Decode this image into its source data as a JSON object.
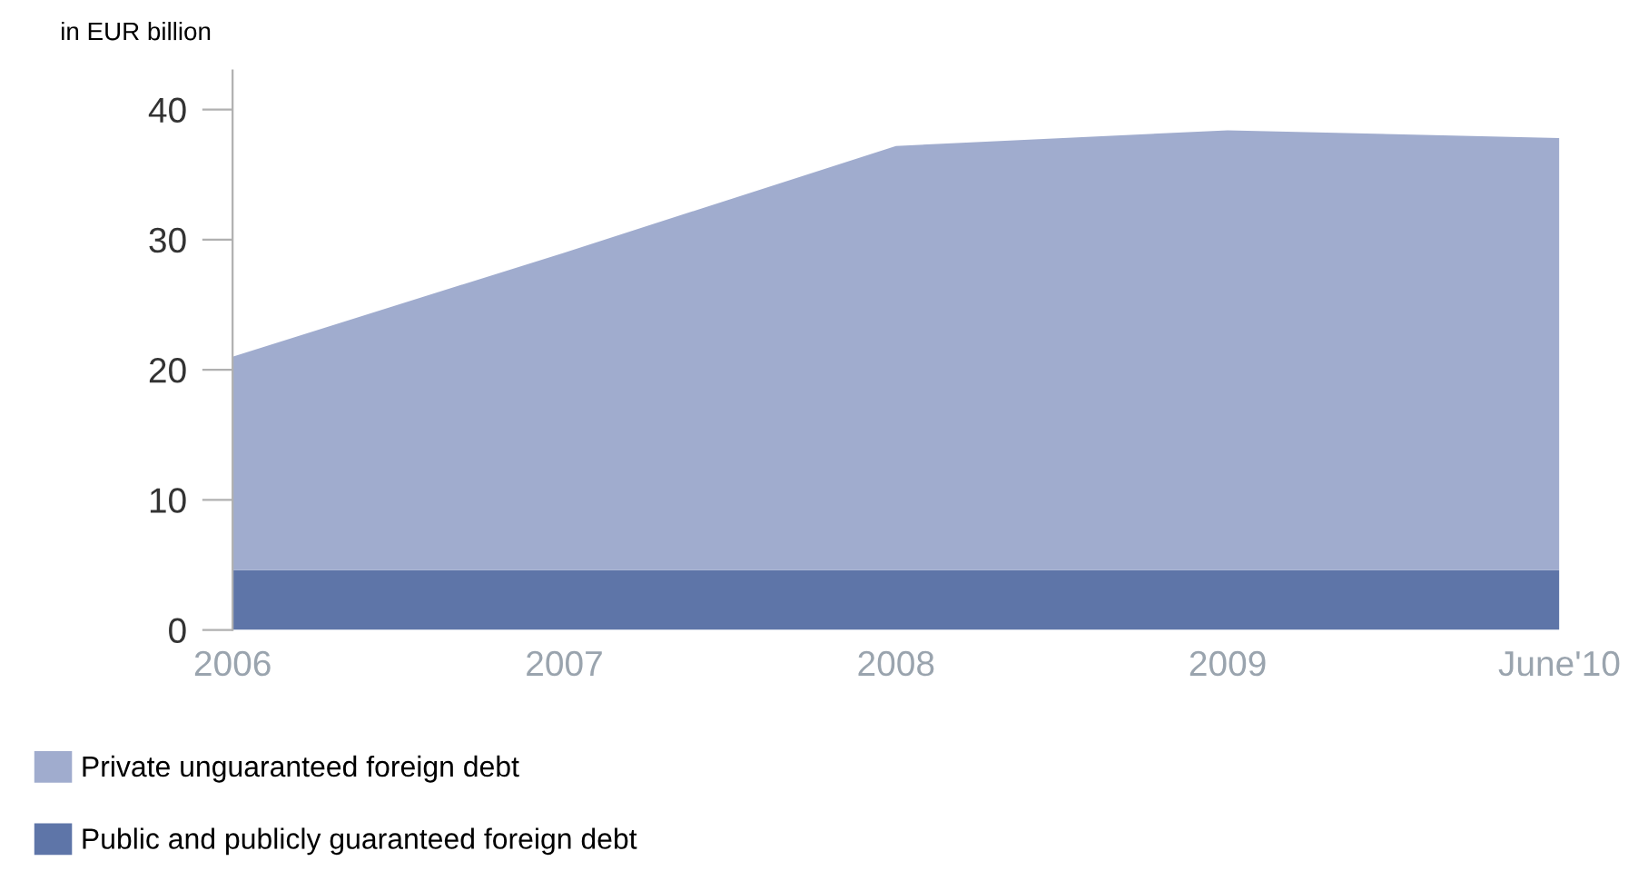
{
  "chart_data": {
    "type": "area",
    "stacked": true,
    "ylabel": "in EUR billion",
    "categories": [
      "2006",
      "2007",
      "2008",
      "2009",
      "June'10"
    ],
    "series": [
      {
        "name": "Public and publicly guaranteed foreign debt",
        "color": "#5e75a8",
        "values": [
          4.6,
          4.6,
          4.6,
          4.6,
          4.6
        ]
      },
      {
        "name": "Private unguaranteed foreign debt",
        "color": "#a0acce",
        "values": [
          16.4,
          24.4,
          32.6,
          33.8,
          33.2
        ]
      }
    ],
    "ylim": [
      0,
      43
    ],
    "yticks": [
      0,
      10,
      20,
      30,
      40
    ],
    "grid": false,
    "legend": "bottom left"
  }
}
